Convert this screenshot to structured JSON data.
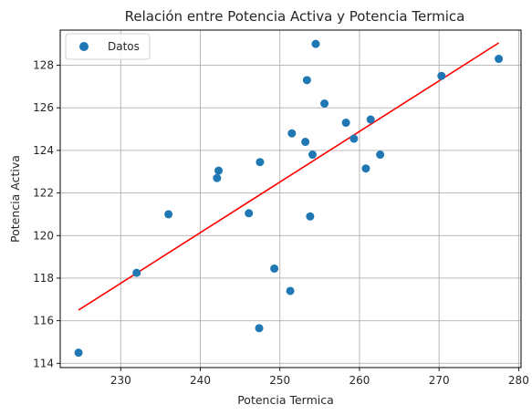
{
  "chart_data": {
    "type": "scatter",
    "title": "Relación entre Potencia Activa y Potencia Termica",
    "xlabel": "Potencia Termica",
    "ylabel": "Potencia Activa",
    "xlim": [
      222.4,
      280.3
    ],
    "ylim": [
      113.8,
      129.65
    ],
    "xticks": [
      230,
      240,
      250,
      260,
      270,
      280
    ],
    "yticks": [
      114,
      116,
      118,
      120,
      122,
      124,
      126,
      128
    ],
    "grid": true,
    "legend": {
      "position": "top-left",
      "entries": [
        "Datos"
      ]
    },
    "colors": {
      "points": "#1f77b4",
      "fit": "#ff0000",
      "grid": "#b0b0b0"
    },
    "series": [
      {
        "name": "Datos",
        "kind": "scatter",
        "points": [
          [
            224.7,
            114.5
          ],
          [
            232.0,
            118.25
          ],
          [
            236.0,
            121.0
          ],
          [
            242.1,
            122.7
          ],
          [
            242.3,
            123.05
          ],
          [
            246.1,
            121.05
          ],
          [
            247.4,
            115.65
          ],
          [
            247.5,
            123.45
          ],
          [
            249.3,
            118.45
          ],
          [
            251.3,
            117.4
          ],
          [
            251.5,
            124.8
          ],
          [
            253.2,
            124.4
          ],
          [
            253.4,
            127.3
          ],
          [
            253.8,
            120.9
          ],
          [
            254.1,
            123.8
          ],
          [
            254.5,
            129.0
          ],
          [
            255.6,
            126.2
          ],
          [
            258.3,
            125.3
          ],
          [
            259.3,
            124.55
          ],
          [
            260.8,
            123.15
          ],
          [
            261.4,
            125.45
          ],
          [
            262.6,
            123.8
          ],
          [
            270.3,
            127.5
          ],
          [
            277.5,
            128.3
          ]
        ]
      },
      {
        "kind": "line",
        "points": [
          [
            224.7,
            116.5
          ],
          [
            277.5,
            129.05
          ]
        ]
      }
    ]
  }
}
